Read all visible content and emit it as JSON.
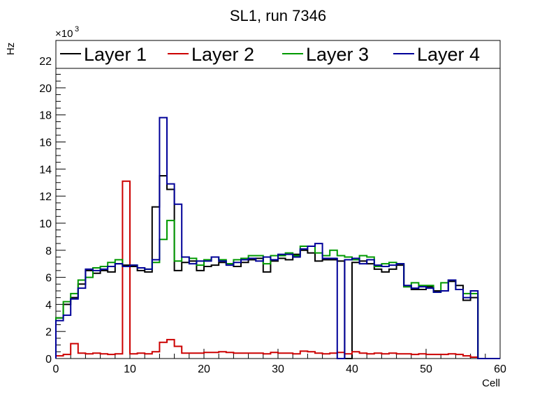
{
  "chart_data": {
    "type": "line",
    "title": "SL1, run 7346",
    "xlabel": "Cell",
    "ylabel": "Hz",
    "y_multiplier_label": "×10",
    "y_multiplier_exponent": "3",
    "xlim": [
      0,
      60
    ],
    "ylim": [
      0,
      23.5
    ],
    "x_ticks": [
      0,
      10,
      20,
      30,
      40,
      50,
      60
    ],
    "y_ticks": [
      0,
      2,
      4,
      6,
      8,
      10,
      12,
      14,
      16,
      18,
      20,
      22
    ],
    "x_tick_labels": [
      "0",
      "10",
      "20",
      "30",
      "40",
      "50",
      "60"
    ],
    "y_tick_labels": [
      "0",
      "2",
      "4",
      "6",
      "8",
      "10",
      "12",
      "14",
      "16",
      "18",
      "20",
      "22"
    ],
    "legend_position": "top",
    "bin_edges_start": 0,
    "bin_width": 1,
    "series": [
      {
        "name": "Layer 1",
        "color": "#000000",
        "values": [
          3.0,
          4.0,
          4.5,
          5.5,
          6.5,
          6.3,
          6.5,
          6.4,
          7.0,
          6.9,
          6.8,
          6.5,
          6.4,
          11.2,
          13.5,
          12.5,
          6.5,
          7.1,
          7.2,
          6.5,
          6.8,
          6.9,
          7.1,
          7.0,
          6.8,
          7.1,
          7.3,
          7.4,
          6.4,
          7.2,
          7.4,
          7.3,
          7.7,
          8.0,
          7.8,
          7.2,
          7.3,
          7.3,
          7.2,
          0.0,
          7.1,
          7.2,
          7.0,
          6.6,
          6.4,
          6.6,
          6.9,
          5.3,
          5.1,
          5.1,
          5.3,
          5.0,
          5.0,
          5.7,
          5.4,
          4.3,
          4.5,
          0.0,
          0.0,
          0.0
        ]
      },
      {
        "name": "Layer 2",
        "color": "#cc0000",
        "values": [
          0.2,
          0.3,
          1.1,
          0.4,
          0.35,
          0.4,
          0.35,
          0.3,
          0.35,
          13.1,
          0.35,
          0.4,
          0.35,
          0.5,
          1.2,
          1.4,
          0.9,
          0.4,
          0.4,
          0.4,
          0.45,
          0.45,
          0.5,
          0.45,
          0.4,
          0.4,
          0.4,
          0.4,
          0.35,
          0.45,
          0.4,
          0.4,
          0.35,
          0.55,
          0.5,
          0.4,
          0.35,
          0.4,
          0.45,
          0.35,
          0.5,
          0.4,
          0.35,
          0.4,
          0.35,
          0.4,
          0.35,
          0.35,
          0.3,
          0.35,
          0.3,
          0.3,
          0.3,
          0.35,
          0.3,
          0.2,
          0.1,
          0.0,
          0.0,
          0.0
        ]
      },
      {
        "name": "Layer 3",
        "color": "#009900",
        "values": [
          3.0,
          4.2,
          4.8,
          5.8,
          6.0,
          6.7,
          6.8,
          7.1,
          7.3,
          6.8,
          6.9,
          6.7,
          6.6,
          7.1,
          8.8,
          10.2,
          7.2,
          7.5,
          7.4,
          6.9,
          7.3,
          7.5,
          7.3,
          7.0,
          7.3,
          7.4,
          7.6,
          7.6,
          7.0,
          7.6,
          7.6,
          7.8,
          7.6,
          8.3,
          8.3,
          7.8,
          7.6,
          8.0,
          7.6,
          7.5,
          7.3,
          7.6,
          7.5,
          6.8,
          7.0,
          7.1,
          7.0,
          5.3,
          5.6,
          5.4,
          5.4,
          4.9,
          5.6,
          5.8,
          5.1,
          4.8,
          4.8,
          0.0,
          0.0,
          0.0
        ]
      },
      {
        "name": "Layer 4",
        "color": "#000099",
        "values": [
          2.8,
          3.2,
          4.4,
          5.2,
          6.6,
          6.5,
          6.6,
          6.8,
          7.0,
          6.8,
          6.9,
          6.7,
          6.6,
          7.3,
          17.8,
          12.9,
          11.4,
          7.5,
          7.0,
          7.2,
          7.2,
          7.5,
          7.2,
          6.9,
          7.1,
          7.3,
          7.4,
          7.2,
          7.5,
          7.3,
          7.7,
          7.7,
          7.5,
          8.1,
          8.3,
          8.5,
          7.4,
          7.4,
          0.0,
          7.3,
          7.4,
          7.0,
          7.3,
          6.9,
          6.8,
          6.9,
          7.0,
          5.4,
          5.2,
          5.3,
          5.2,
          4.9,
          5.0,
          5.8,
          5.1,
          4.5,
          5.0,
          0.0,
          0.0,
          0.0
        ]
      }
    ]
  }
}
